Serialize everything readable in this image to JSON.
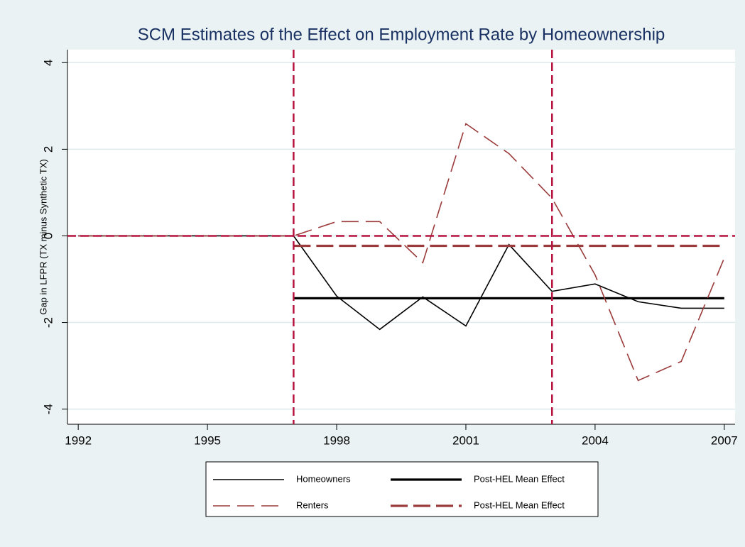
{
  "chart_data": {
    "type": "line",
    "title": "SCM Estimates of the Effect on Employment Rate by Homeownership",
    "y_label": "Gap in LFPR (TX minus Synthetic TX)",
    "x": [
      1992,
      1993,
      1994,
      1995,
      1996,
      1997,
      1998,
      1999,
      2000,
      2001,
      2002,
      2003,
      2004,
      2005,
      2006,
      2007
    ],
    "series": [
      {
        "name": "Homeowners",
        "color": "#000000",
        "width": 1.6,
        "dash": "none",
        "values": [
          0,
          0,
          0,
          0,
          0,
          0,
          -1.39,
          -2.16,
          -1.41,
          -2.08,
          -0.2,
          -1.28,
          -1.11,
          -1.52,
          -1.67,
          -1.67
        ]
      },
      {
        "name": "Post-HEL Mean Effect",
        "color": "#000000",
        "width": 3.2,
        "dash": "none",
        "values": [
          null,
          null,
          null,
          null,
          null,
          -1.44,
          -1.44,
          -1.44,
          -1.44,
          -1.44,
          -1.44,
          -1.44,
          -1.44,
          -1.44,
          -1.44,
          -1.44
        ]
      },
      {
        "name": "Renters",
        "color": "#9b3b3b",
        "width": 1.6,
        "dash": "24 10",
        "values": [
          0,
          0,
          0,
          0,
          0,
          0,
          0.33,
          0.33,
          -0.62,
          2.59,
          1.9,
          0.87,
          -0.9,
          -3.34,
          -2.9,
          -0.51
        ]
      },
      {
        "name": "Post-HEL Mean Effect",
        "color": "#9b3b3b",
        "width": 3.2,
        "dash": "24 8",
        "values": [
          null,
          null,
          null,
          null,
          null,
          -0.23,
          -0.23,
          -0.23,
          -0.23,
          -0.23,
          -0.23,
          -0.23,
          -0.23,
          -0.23,
          -0.23,
          -0.23
        ]
      }
    ],
    "xlim": [
      1991.75,
      2007.25
    ],
    "ylim": [
      -4.35,
      4.3
    ],
    "xticks": [
      1992,
      1995,
      1998,
      2001,
      2004,
      2007
    ],
    "yticks": [
      -4,
      -2,
      0,
      2,
      4
    ],
    "grid": true,
    "xlines": [
      1997,
      2003
    ],
    "ylines": [
      0
    ],
    "reference_color": "#b5123f",
    "legend": "bottom"
  }
}
